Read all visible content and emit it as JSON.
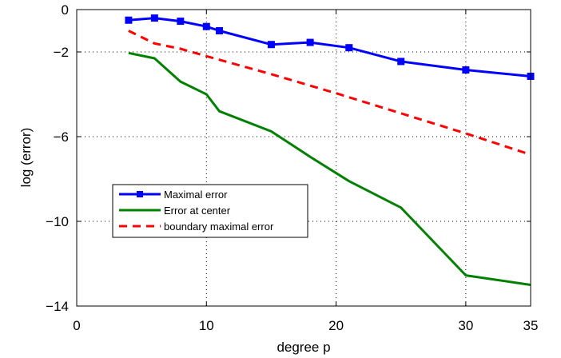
{
  "chart_data": {
    "type": "line",
    "title": "",
    "xlabel": "degree p",
    "ylabel": "log (error)",
    "xlim": [
      0,
      35
    ],
    "ylim": [
      -14,
      0
    ],
    "xticks": [
      0,
      10,
      20,
      30,
      35
    ],
    "yticks": [
      0,
      -2,
      -6,
      -10,
      -14
    ],
    "xtick_labels": [
      "0",
      "10",
      "20",
      "30",
      "35"
    ],
    "ytick_labels": [
      "0",
      "−2",
      "−6",
      "−10",
      "−14"
    ],
    "grid": "dotted",
    "legend_position": "lower-left",
    "series": [
      {
        "name": "Maximal error",
        "color": "#0000ff",
        "style": "solid",
        "marker": "square",
        "x": [
          4,
          6,
          8,
          10,
          11,
          15,
          18,
          21,
          25,
          30,
          35
        ],
        "y": [
          -0.5,
          -0.4,
          -0.55,
          -0.8,
          -1.0,
          -1.65,
          -1.55,
          -1.8,
          -2.45,
          -2.85,
          -3.15
        ]
      },
      {
        "name": "Error at center",
        "color": "#008000",
        "style": "solid",
        "marker": "none",
        "x": [
          4,
          6,
          8,
          10,
          11,
          15,
          18,
          21,
          25,
          30,
          35
        ],
        "y": [
          -2.05,
          -2.3,
          -3.4,
          -4.0,
          -4.8,
          -5.75,
          -6.95,
          -8.1,
          -9.35,
          -12.55,
          -13.0
        ]
      },
      {
        "name": "boundary maximal error",
        "color": "#ff0000",
        "style": "dashed",
        "marker": "none",
        "x": [
          4,
          6,
          8,
          10,
          15,
          20,
          25,
          30,
          35
        ],
        "y": [
          -1.0,
          -1.6,
          -1.85,
          -2.2,
          -3.05,
          -3.95,
          -4.9,
          -5.85,
          -6.85
        ]
      }
    ]
  }
}
